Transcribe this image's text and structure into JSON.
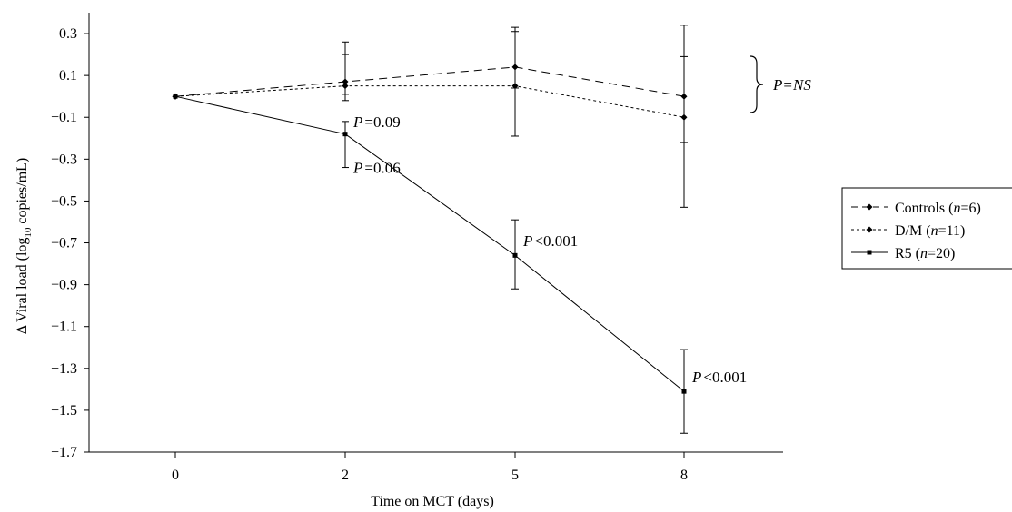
{
  "chart_data": {
    "type": "line",
    "categories": [
      "0",
      "2",
      "5",
      "8"
    ],
    "xlabel": "Time on MCT (days)",
    "ylabel_prefix": "Δ Viral load (log",
    "ylabel_sub": "10",
    "ylabel_suffix": " copies/mL)",
    "ylim": [
      -1.7,
      0.4
    ],
    "yticks": [
      "0.3",
      "0.1",
      "-0.1",
      "-0.3",
      "-0.5",
      "-0.7",
      "-0.9",
      "-1.1",
      "-1.3",
      "-1.5",
      "-1.7"
    ],
    "grid": false,
    "legend_position": "right",
    "series": [
      {
        "name_plain": "Controls (",
        "name_italic": "n",
        "name_rest": "=6)",
        "style": "dashed",
        "marker": "diamond",
        "values": [
          0.0,
          0.07,
          0.14,
          0.0
        ],
        "error_upper": [
          0.0,
          0.26,
          0.33,
          0.34
        ],
        "error_lower": [
          0.0,
          -0.02,
          0.04,
          -0.22
        ]
      },
      {
        "name_plain": "D/M (",
        "name_italic": "n",
        "name_rest": "=11)",
        "style": "dotted",
        "marker": "diamond",
        "values": [
          0.0,
          0.05,
          0.05,
          -0.1
        ],
        "error_upper": [
          0.0,
          0.2,
          0.31,
          0.19
        ],
        "error_lower": [
          0.0,
          0.01,
          -0.19,
          -0.53
        ]
      },
      {
        "name_plain": "R5 (",
        "name_italic": "n",
        "name_rest": "=20)",
        "style": "solid",
        "marker": "square",
        "values": [
          0.0,
          -0.18,
          -0.76,
          -1.41
        ],
        "error_upper": [
          0.0,
          -0.12,
          -0.59,
          -1.21
        ],
        "error_lower": [
          0.0,
          -0.34,
          -0.92,
          -1.61
        ]
      }
    ],
    "annotations": [
      {
        "italic": "P",
        "rest": "=0.09",
        "x_index": 1,
        "y": -0.12
      },
      {
        "italic": "P",
        "rest": "=0.06",
        "x_index": 1,
        "y": -0.34
      },
      {
        "italic": "P",
        "rest": "<0.001",
        "x_index": 2,
        "y": -0.69
      },
      {
        "italic": "P",
        "rest": "<0.001",
        "x_index": 3,
        "y": -1.34
      }
    ],
    "bracket_label": {
      "italic_a": "P",
      "rest": "=",
      "italic_b": "NS"
    }
  }
}
